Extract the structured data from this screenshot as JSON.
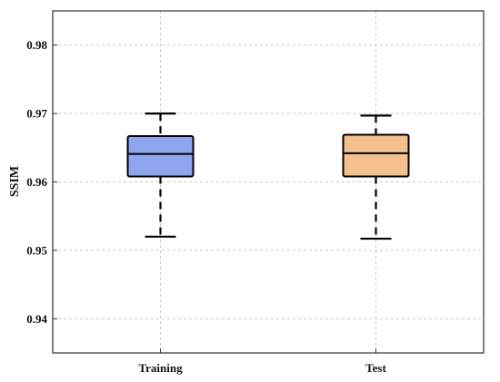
{
  "chart_data": {
    "type": "box",
    "categories": [
      "Training",
      "Test"
    ],
    "ylabel": "SSIM",
    "xlabel": "",
    "ylim": [
      0.935,
      0.985
    ],
    "yticks": [
      0.94,
      0.95,
      0.96,
      0.97,
      0.98
    ],
    "ytick_labels": [
      "0.94",
      "0.95",
      "0.96",
      "0.97",
      "0.98"
    ],
    "grid": true,
    "boxes": [
      {
        "name": "Training",
        "whisker_low": 0.952,
        "q1": 0.9608,
        "median": 0.9641,
        "q3": 0.9667,
        "whisker_high": 0.97,
        "color": "#8fa5f0"
      },
      {
        "name": "Test",
        "whisker_low": 0.9517,
        "q1": 0.9608,
        "median": 0.9642,
        "q3": 0.9669,
        "whisker_high": 0.9697,
        "color": "#f4c08e"
      }
    ]
  }
}
